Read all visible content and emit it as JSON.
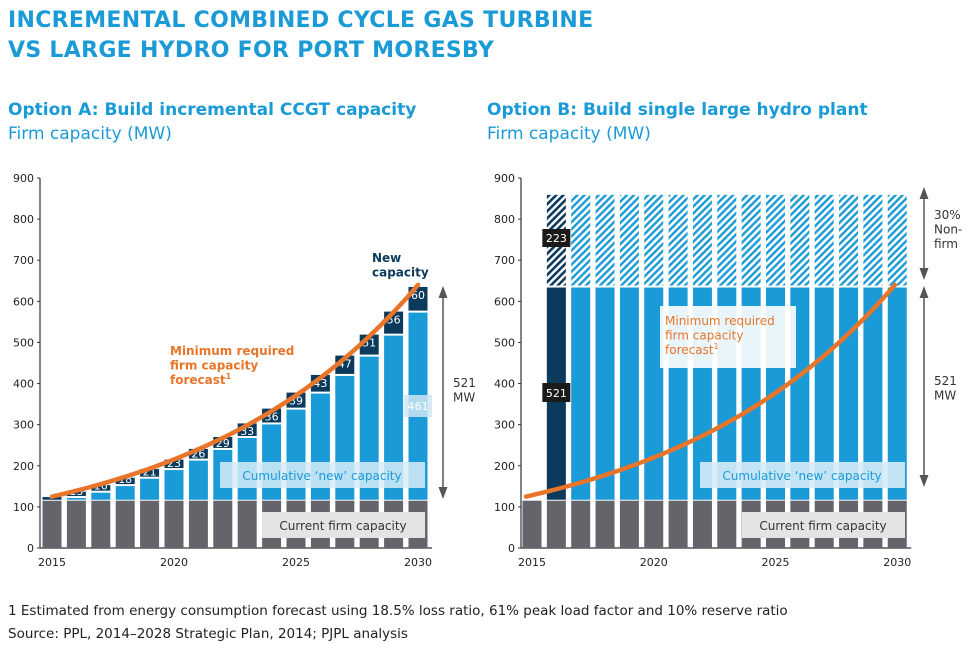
{
  "title_lines": [
    "INCREMENTAL COMBINED CYCLE GAS TURBINE",
    "VS LARGE HYDRO FOR PORT MORESBY"
  ],
  "colors": {
    "accent": "#1a9ad6",
    "new_capacity": "#0b3a5c",
    "current": "#63656a",
    "forecast": "#e8752a",
    "bar": "#1a9ad6"
  },
  "chart_data": [
    {
      "type": "bar",
      "stacked": true,
      "title": "Option A: Build incremental CCGT capacity",
      "ylabel": "Firm capacity (MW)",
      "ylim": [
        0,
        900
      ],
      "yticks": [
        "0",
        "100",
        "200",
        "300",
        "400",
        "500",
        "600",
        "700",
        "800",
        "900"
      ],
      "xtick_labels": [
        "2015",
        "2020",
        "2025",
        "2030"
      ],
      "x": [
        2015,
        2016,
        2017,
        2018,
        2019,
        2020,
        2021,
        2022,
        2023,
        2024,
        2025,
        2026,
        2027,
        2028,
        2029,
        2030
      ],
      "current_firm_capacity": 115,
      "new_capacity_increments": [
        9,
        13,
        16,
        18,
        21,
        23,
        26,
        29,
        33,
        36,
        39,
        43,
        47,
        51,
        56,
        60
      ],
      "forecast_start": 125,
      "forecast_end": 640,
      "annotations": {
        "new_capacity": "New capacity",
        "forecast": "Minimum required firm capacity forecast",
        "footnote_mark": "1",
        "cumulative": "Cumulative ‘new’ capacity",
        "current": "Current firm capacity",
        "cumulative_value": "461",
        "total": "521",
        "total_unit": "MW"
      }
    },
    {
      "type": "bar",
      "stacked": true,
      "title": "Option B: Build single large hydro plant",
      "ylabel": "Firm capacity (MW)",
      "ylim": [
        0,
        900
      ],
      "yticks": [
        "0",
        "100",
        "200",
        "300",
        "400",
        "500",
        "600",
        "700",
        "800",
        "900"
      ],
      "xtick_labels": [
        "2015",
        "2020",
        "2025",
        "2030"
      ],
      "x": [
        2015,
        2016,
        2017,
        2018,
        2019,
        2020,
        2021,
        2022,
        2023,
        2024,
        2025,
        2026,
        2027,
        2028,
        2029,
        2030
      ],
      "current_firm_capacity": 115,
      "hydro_firm": 521,
      "hydro_non_firm": 223,
      "hydro_start_year": 2016,
      "forecast_start": 125,
      "forecast_end": 640,
      "annotations": {
        "firm_label": "521",
        "non_firm_label": "223",
        "forecast": "Minimum required firm capacity forecast",
        "footnote_mark": "1",
        "cumulative": "Cumulative ‘new’ capacity",
        "current": "Current firm capacity",
        "non_firm_pct": "30%",
        "non_firm_text": "Non-firm",
        "total": "521",
        "total_unit": "MW"
      }
    }
  ],
  "footnotes": {
    "note1": "1    Estimated from energy consumption forecast using 18.5% loss ratio, 61% peak load factor and 10% reserve ratio",
    "source": "Source:  PPL, 2014–2028 Strategic Plan, 2014; PJPL analysis"
  }
}
